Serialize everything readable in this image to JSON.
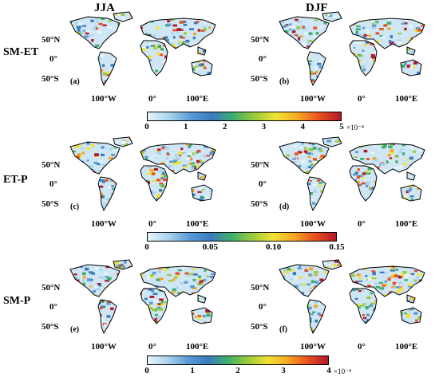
{
  "columns": [
    "JJA",
    "DJF"
  ],
  "rows": [
    {
      "label": "SM-ET",
      "panels": [
        "(a)",
        "(b)"
      ],
      "colorbar": {
        "ticks": [
          "0",
          "1",
          "2",
          "3",
          "4",
          "5"
        ],
        "exponent": "×10⁻⁴"
      }
    },
    {
      "label": "ET-P",
      "panels": [
        "(c)",
        "(d)"
      ],
      "colorbar": {
        "ticks": [
          "0",
          "0.05",
          "0.10",
          "0.15"
        ],
        "exponent": ""
      }
    },
    {
      "label": "SM-P",
      "panels": [
        "(e)",
        "(f)"
      ],
      "colorbar": {
        "ticks": [
          "0",
          "1",
          "2",
          "3",
          "4"
        ],
        "exponent": "×10⁻⁴"
      }
    }
  ],
  "lat_labels": [
    "50°N",
    "0°",
    "50°S"
  ],
  "lon_labels": [
    "100°W",
    "0°",
    "100°E"
  ],
  "colormap": [
    "#e8f4fb",
    "#a9d4ec",
    "#5b9bd5",
    "#3a7bbf",
    "#3fae6a",
    "#9bcb3b",
    "#f2e234",
    "#f5a623",
    "#e8501f",
    "#b2182b"
  ]
}
